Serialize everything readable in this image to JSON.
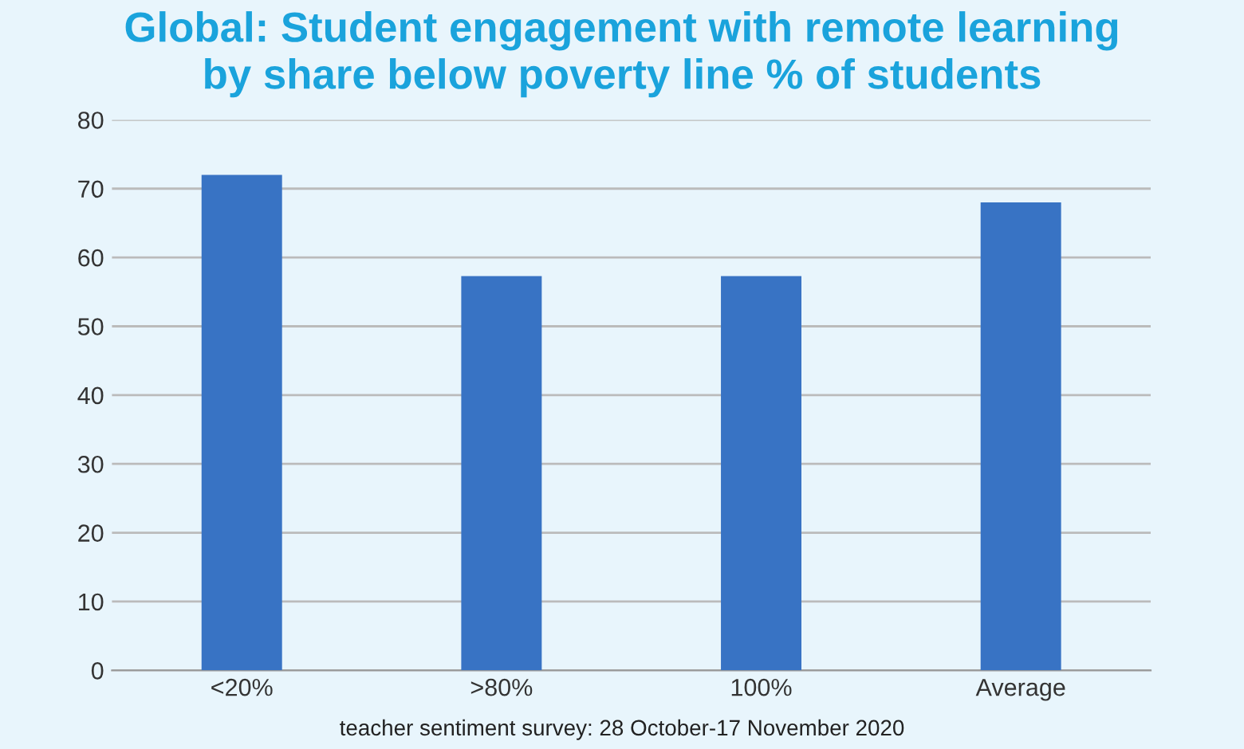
{
  "chart_data": {
    "type": "bar",
    "title": "Global: Student engagement with remote learning\nby share below poverty line % of students",
    "categories": [
      "<20%",
      ">80%",
      "100%",
      "Average"
    ],
    "values": [
      72,
      57.3,
      57.3,
      68
    ],
    "color": "#3873c4",
    "ylim": [
      0,
      80
    ],
    "yticks": [
      0,
      10,
      20,
      30,
      40,
      50,
      60,
      70,
      80
    ],
    "grid": "y",
    "annotations": [
      "teacher sentiment survey: 28 October-17 November 2020"
    ]
  }
}
